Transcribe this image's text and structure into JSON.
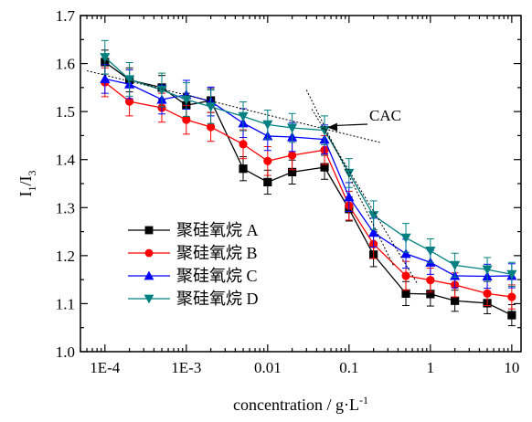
{
  "chart_data": {
    "type": "line",
    "xscale": "log",
    "xlim": [
      5e-05,
      13
    ],
    "ylim": [
      1.0,
      1.7
    ],
    "xticks": [
      0.0001,
      0.001,
      0.01,
      0.1,
      1,
      10
    ],
    "xtick_labels": [
      "1E-4",
      "1E-3",
      "0.01",
      "0.1",
      "1",
      "10"
    ],
    "yticks": [
      1.0,
      1.1,
      1.2,
      1.3,
      1.4,
      1.5,
      1.6,
      1.7
    ],
    "ytick_labels": [
      "1.0",
      "1.1",
      "1.2",
      "1.3",
      "1.4",
      "1.5",
      "1.6",
      "1.7"
    ],
    "xlabel_main": "concentration / g·L",
    "xlabel_sup": "-1",
    "ylabel_main": "I",
    "ylabel_sub1": "1",
    "ylabel_slash": "/I",
    "ylabel_sub2": "3",
    "grid": false,
    "legend_position": "bottom-left",
    "x": [
      0.0001,
      0.0002,
      0.0005,
      0.001,
      0.002,
      0.005,
      0.01,
      0.02,
      0.05,
      0.1,
      0.2,
      0.5,
      1,
      2,
      5,
      10
    ],
    "series": [
      {
        "name": "聚硅氧烷 A",
        "color": "#000000",
        "marker": "square",
        "values": [
          1.603,
          1.566,
          1.55,
          1.513,
          1.523,
          1.381,
          1.353,
          1.374,
          1.384,
          1.297,
          1.202,
          1.121,
          1.12,
          1.106,
          1.101,
          1.076
        ],
        "error": [
          0.025,
          0.025,
          0.025,
          0.025,
          0.025,
          0.025,
          0.025,
          0.025,
          0.025,
          0.025,
          0.025,
          0.025,
          0.025,
          0.022,
          0.022,
          0.022
        ]
      },
      {
        "name": "聚硅氧烷 B",
        "color": "#ff0000",
        "marker": "circle",
        "values": [
          1.561,
          1.521,
          1.508,
          1.483,
          1.468,
          1.432,
          1.397,
          1.409,
          1.42,
          1.304,
          1.224,
          1.158,
          1.149,
          1.139,
          1.121,
          1.114
        ],
        "error": [
          0.03,
          0.03,
          0.03,
          0.03,
          0.03,
          0.03,
          0.03,
          0.03,
          0.03,
          0.03,
          0.03,
          0.03,
          0.025,
          0.025,
          0.025,
          0.025
        ]
      },
      {
        "name": "聚硅氧烷 C",
        "color": "#0000ff",
        "marker": "triangle-up",
        "values": [
          1.568,
          1.557,
          1.525,
          1.535,
          1.521,
          1.476,
          1.449,
          1.447,
          1.442,
          1.322,
          1.248,
          1.204,
          1.186,
          1.158,
          1.157,
          1.158
        ],
        "error": [
          0.03,
          0.03,
          0.03,
          0.03,
          0.03,
          0.03,
          0.03,
          0.03,
          0.03,
          0.03,
          0.03,
          0.03,
          0.025,
          0.025,
          0.025,
          0.025
        ]
      },
      {
        "name": "聚硅氧烷 D",
        "color": "#008080",
        "marker": "triangle-down",
        "values": [
          1.613,
          1.567,
          1.545,
          1.525,
          1.51,
          1.49,
          1.473,
          1.466,
          1.461,
          1.372,
          1.284,
          1.237,
          1.21,
          1.18,
          1.171,
          1.161
        ],
        "error": [
          0.035,
          0.035,
          0.035,
          0.035,
          0.035,
          0.03,
          0.03,
          0.03,
          0.03,
          0.03,
          0.03,
          0.03,
          0.025,
          0.025,
          0.025,
          0.025
        ]
      }
    ],
    "annotations": [
      {
        "text": "CAC",
        "x": 0.05,
        "y": 1.465
      }
    ]
  }
}
